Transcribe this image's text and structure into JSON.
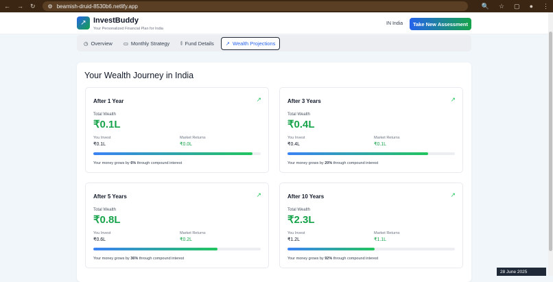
{
  "browser": {
    "url": "beamish-druid-8530b6.netlify.app"
  },
  "header": {
    "brand": "InvestBuddy",
    "tagline": "Your Personalized Financial Plan for India",
    "country_code": "IN",
    "country": "India",
    "cta": "Take New Assessment"
  },
  "tabs": [
    {
      "label": "Overview",
      "icon": "clock-icon"
    },
    {
      "label": "Monthly Strategy",
      "icon": "calendar-icon"
    },
    {
      "label": "Fund Details",
      "icon": "bar-chart-icon"
    },
    {
      "label": "Wealth Projections",
      "icon": "trending-up-icon",
      "active": true
    }
  ],
  "panel": {
    "title": "Your Wealth Journey in India",
    "labels": {
      "total": "Total Wealth",
      "invest": "You Invest",
      "returns": "Market Returns"
    },
    "cards": [
      {
        "title": "After 1 Year",
        "total": "₹0.1L",
        "invest": "₹0.1L",
        "returns": "₹0.0L",
        "pre": "Your money grows by ",
        "growth": "6%",
        "post": " through compound interest",
        "progress": 0.95
      },
      {
        "title": "After 3 Years",
        "total": "₹0.4L",
        "invest": "₹0.4L",
        "returns": "₹0.1L",
        "pre": "Your money grows by ",
        "growth": "20%",
        "post": " through compound interest",
        "progress": 0.84
      },
      {
        "title": "After 5 Years",
        "total": "₹0.8L",
        "invest": "₹0.6L",
        "returns": "₹0.2L",
        "pre": "Your money grows by ",
        "growth": "36%",
        "post": " through compound interest",
        "progress": 0.74
      },
      {
        "title": "After 10 Years",
        "total": "₹2.3L",
        "invest": "₹1.2L",
        "returns": "₹1.1L",
        "pre": "Your money grows by ",
        "growth": "92%",
        "post": " through compound interest",
        "progress": 0.52
      }
    ]
  },
  "date_badge": "28 June 2025"
}
